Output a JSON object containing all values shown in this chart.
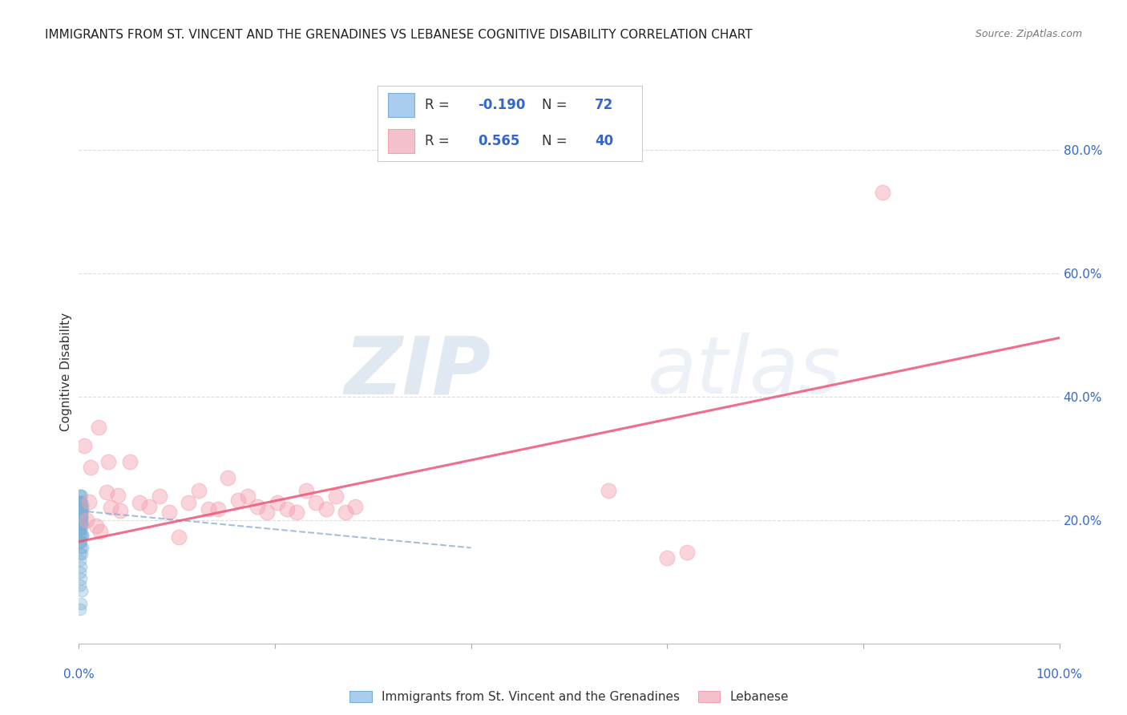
{
  "title": "IMMIGRANTS FROM ST. VINCENT AND THE GRENADINES VS LEBANESE COGNITIVE DISABILITY CORRELATION CHART",
  "source": "Source: ZipAtlas.com",
  "ylabel": "Cognitive Disability",
  "right_yticks": [
    "80.0%",
    "60.0%",
    "40.0%",
    "20.0%"
  ],
  "right_ytick_vals": [
    0.8,
    0.6,
    0.4,
    0.2
  ],
  "legend_blue_r": "-0.190",
  "legend_blue_n": "72",
  "legend_pink_r": "0.565",
  "legend_pink_n": "40",
  "legend_label_blue": "Immigrants from St. Vincent and the Grenadines",
  "legend_label_pink": "Lebanese",
  "blue_color": "#7BAFD4",
  "pink_color": "#F4A0B0",
  "blue_scatter": {
    "x": [
      0.001,
      0.002,
      0.001,
      0.003,
      0.002,
      0.001,
      0.004,
      0.003,
      0.002,
      0.001,
      0.001,
      0.002,
      0.003,
      0.001,
      0.002,
      0.001,
      0.003,
      0.002,
      0.001,
      0.004,
      0.001,
      0.002,
      0.001,
      0.003,
      0.002,
      0.001,
      0.004,
      0.003,
      0.002,
      0.001,
      0.001,
      0.002,
      0.003,
      0.001,
      0.002,
      0.001,
      0.003,
      0.002,
      0.001,
      0.004,
      0.001,
      0.002,
      0.001,
      0.003,
      0.002,
      0.001,
      0.004,
      0.003,
      0.002,
      0.001,
      0.001,
      0.002,
      0.003,
      0.001,
      0.002,
      0.001,
      0.003,
      0.002,
      0.001,
      0.004,
      0.001,
      0.002,
      0.001,
      0.003,
      0.002,
      0.001,
      0.004,
      0.003,
      0.002,
      0.001,
      0.001,
      0.002
    ],
    "y": [
      0.225,
      0.23,
      0.215,
      0.205,
      0.195,
      0.185,
      0.22,
      0.21,
      0.2,
      0.24,
      0.21,
      0.2,
      0.195,
      0.23,
      0.22,
      0.215,
      0.205,
      0.195,
      0.185,
      0.175,
      0.22,
      0.23,
      0.215,
      0.205,
      0.195,
      0.185,
      0.225,
      0.215,
      0.205,
      0.24,
      0.215,
      0.205,
      0.195,
      0.23,
      0.225,
      0.215,
      0.205,
      0.195,
      0.185,
      0.175,
      0.165,
      0.155,
      0.145,
      0.22,
      0.215,
      0.205,
      0.195,
      0.185,
      0.175,
      0.165,
      0.22,
      0.23,
      0.24,
      0.205,
      0.195,
      0.215,
      0.205,
      0.22,
      0.23,
      0.215,
      0.115,
      0.105,
      0.095,
      0.085,
      0.125,
      0.135,
      0.155,
      0.145,
      0.165,
      0.175,
      0.055,
      0.065
    ]
  },
  "pink_scatter": {
    "x": [
      0.005,
      0.012,
      0.02,
      0.03,
      0.04,
      0.008,
      0.018,
      0.028,
      0.01,
      0.022,
      0.032,
      0.042,
      0.052,
      0.062,
      0.072,
      0.082,
      0.092,
      0.102,
      0.112,
      0.122,
      0.132,
      0.142,
      0.152,
      0.162,
      0.172,
      0.182,
      0.192,
      0.202,
      0.212,
      0.222,
      0.232,
      0.242,
      0.252,
      0.262,
      0.272,
      0.282,
      0.6,
      0.62,
      0.82,
      0.54
    ],
    "y": [
      0.32,
      0.285,
      0.35,
      0.295,
      0.24,
      0.2,
      0.19,
      0.245,
      0.23,
      0.182,
      0.22,
      0.215,
      0.295,
      0.228,
      0.222,
      0.238,
      0.212,
      0.172,
      0.228,
      0.248,
      0.218,
      0.218,
      0.268,
      0.232,
      0.238,
      0.222,
      0.212,
      0.228,
      0.218,
      0.212,
      0.248,
      0.228,
      0.218,
      0.238,
      0.212,
      0.222,
      0.138,
      0.148,
      0.73,
      0.248
    ]
  },
  "xlim": [
    0.0,
    1.0
  ],
  "ylim": [
    0.0,
    0.88
  ],
  "background_color": "#ffffff",
  "grid_color": "#dddddd",
  "title_color": "#222222",
  "axis_label_color": "#3366CC",
  "watermark_zip": "ZIP",
  "watermark_atlas": "atlas"
}
